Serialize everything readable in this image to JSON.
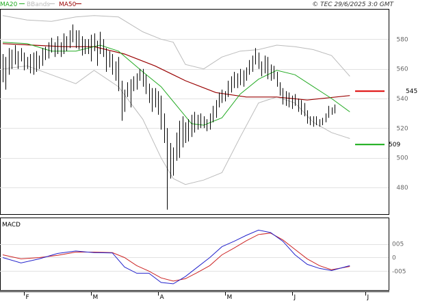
{
  "legend": {
    "ma20_label": "MA20",
    "bbands_label": "BBands",
    "ma50_label": "MA50"
  },
  "copyright": "© TEC 29/6/2025 3:0 GMT",
  "macd_label": "MACD",
  "signals": {
    "upper_value": "545",
    "lower_value": "509"
  },
  "colors": {
    "ma20": "#22aa22",
    "ma50": "#990000",
    "bbands": "#bbbbbb",
    "price": "#000000",
    "macd_line": "#2222cc",
    "macd_signal": "#cc2222",
    "upper_signal": "#dd0000",
    "lower_signal": "#11aa11"
  },
  "chart_data": [
    {
      "type": "line",
      "title": "",
      "ylabel": "",
      "ylim": [
        462,
        600
      ],
      "yticks": [
        480,
        500,
        520,
        540,
        560,
        580
      ],
      "xlabels": [
        "F",
        "M",
        "A",
        "M",
        "J",
        "J"
      ],
      "ohlc": [
        {
          "h": 570,
          "l": 551
        },
        {
          "h": 568,
          "l": 546
        },
        {
          "h": 574,
          "l": 556
        },
        {
          "h": 573,
          "l": 560
        },
        {
          "h": 576,
          "l": 563
        },
        {
          "h": 572,
          "l": 560
        },
        {
          "h": 574,
          "l": 565
        },
        {
          "h": 571,
          "l": 559
        },
        {
          "h": 568,
          "l": 560
        },
        {
          "h": 570,
          "l": 557
        },
        {
          "h": 571,
          "l": 556
        },
        {
          "h": 572,
          "l": 558
        },
        {
          "h": 569,
          "l": 560
        },
        {
          "h": 574,
          "l": 562
        },
        {
          "h": 575,
          "l": 566
        },
        {
          "h": 578,
          "l": 567
        },
        {
          "h": 581,
          "l": 571
        },
        {
          "h": 578,
          "l": 568
        },
        {
          "h": 582,
          "l": 570
        },
        {
          "h": 578,
          "l": 568
        },
        {
          "h": 584,
          "l": 570
        },
        {
          "h": 582,
          "l": 572
        },
        {
          "h": 586,
          "l": 574
        },
        {
          "h": 590,
          "l": 578
        },
        {
          "h": 586,
          "l": 574
        },
        {
          "h": 586,
          "l": 573
        },
        {
          "h": 582,
          "l": 569
        },
        {
          "h": 580,
          "l": 570
        },
        {
          "h": 580,
          "l": 570
        },
        {
          "h": 583,
          "l": 565
        },
        {
          "h": 584,
          "l": 572
        },
        {
          "h": 579,
          "l": 562
        },
        {
          "h": 585,
          "l": 570
        },
        {
          "h": 580,
          "l": 568
        },
        {
          "h": 574,
          "l": 558
        },
        {
          "h": 572,
          "l": 561
        },
        {
          "h": 570,
          "l": 556
        },
        {
          "h": 565,
          "l": 552
        },
        {
          "h": 568,
          "l": 545
        },
        {
          "h": 552,
          "l": 525
        },
        {
          "h": 546,
          "l": 531
        },
        {
          "h": 551,
          "l": 541
        },
        {
          "h": 553,
          "l": 534
        },
        {
          "h": 555,
          "l": 545
        },
        {
          "h": 557,
          "l": 546
        },
        {
          "h": 560,
          "l": 552
        },
        {
          "h": 560,
          "l": 548
        },
        {
          "h": 556,
          "l": 543
        },
        {
          "h": 550,
          "l": 537
        },
        {
          "h": 547,
          "l": 531
        },
        {
          "h": 547,
          "l": 534
        },
        {
          "h": 545,
          "l": 529
        },
        {
          "h": 542,
          "l": 519
        },
        {
          "h": 530,
          "l": 510
        },
        {
          "h": 520,
          "l": 465
        },
        {
          "h": 510,
          "l": 486
        },
        {
          "h": 507,
          "l": 488
        },
        {
          "h": 517,
          "l": 498
        },
        {
          "h": 525,
          "l": 500
        },
        {
          "h": 528,
          "l": 507
        },
        {
          "h": 524,
          "l": 510
        },
        {
          "h": 526,
          "l": 511
        },
        {
          "h": 529,
          "l": 514
        },
        {
          "h": 531,
          "l": 517
        },
        {
          "h": 529,
          "l": 519
        },
        {
          "h": 530,
          "l": 520
        },
        {
          "h": 528,
          "l": 520
        },
        {
          "h": 526,
          "l": 518
        },
        {
          "h": 530,
          "l": 519
        },
        {
          "h": 535,
          "l": 524
        },
        {
          "h": 539,
          "l": 527
        },
        {
          "h": 544,
          "l": 534
        },
        {
          "h": 546,
          "l": 537
        },
        {
          "h": 545,
          "l": 538
        },
        {
          "h": 552,
          "l": 541
        },
        {
          "h": 555,
          "l": 544
        },
        {
          "h": 558,
          "l": 547
        },
        {
          "h": 557,
          "l": 547
        },
        {
          "h": 560,
          "l": 549
        },
        {
          "h": 559,
          "l": 548
        },
        {
          "h": 561,
          "l": 552
        },
        {
          "h": 566,
          "l": 556
        },
        {
          "h": 569,
          "l": 558
        },
        {
          "h": 574,
          "l": 563
        },
        {
          "h": 571,
          "l": 560
        },
        {
          "h": 565,
          "l": 555
        },
        {
          "h": 569,
          "l": 557
        },
        {
          "h": 568,
          "l": 553
        },
        {
          "h": 563,
          "l": 552
        },
        {
          "h": 562,
          "l": 553
        },
        {
          "h": 558,
          "l": 548
        },
        {
          "h": 551,
          "l": 542
        },
        {
          "h": 547,
          "l": 536
        },
        {
          "h": 545,
          "l": 535
        },
        {
          "h": 544,
          "l": 534
        },
        {
          "h": 542,
          "l": 533
        },
        {
          "h": 543,
          "l": 535
        },
        {
          "h": 540,
          "l": 531
        },
        {
          "h": 539,
          "l": 529
        },
        {
          "h": 537,
          "l": 528
        },
        {
          "h": 532,
          "l": 523
        },
        {
          "h": 528,
          "l": 522
        },
        {
          "h": 528,
          "l": 521
        },
        {
          "h": 528,
          "l": 522
        },
        {
          "h": 526,
          "l": 521
        },
        {
          "h": 527,
          "l": 522
        },
        {
          "h": 530,
          "l": 524
        },
        {
          "h": 535,
          "l": 527
        },
        {
          "h": 534,
          "l": 529
        },
        {
          "h": 536,
          "l": 530
        }
      ],
      "ma20_x_index": [
        0,
        8,
        16,
        24,
        32,
        38,
        46,
        52,
        58,
        62,
        66,
        72,
        78,
        84,
        90,
        96,
        102,
        108,
        114
      ],
      "ma20": [
        578,
        577,
        572,
        572,
        576,
        572,
        558,
        548,
        533,
        523,
        522,
        527,
        543,
        553,
        559,
        556,
        548,
        540,
        531
      ],
      "ma50_x_index": [
        0,
        10,
        20,
        30,
        40,
        50,
        60,
        70,
        80,
        90,
        100,
        114
      ],
      "ma50": [
        577,
        576,
        575,
        575,
        570,
        562,
        552,
        544,
        541,
        541,
        539,
        542
      ],
      "bb_x_index": [
        0,
        8,
        16,
        24,
        30,
        38,
        46,
        52,
        56,
        60,
        66,
        72,
        78,
        84,
        90,
        96,
        102,
        108,
        114
      ],
      "bb_upper": [
        596,
        593,
        592,
        595,
        596,
        595,
        585,
        580,
        578,
        563,
        560,
        568,
        572,
        573,
        576,
        575,
        573,
        569,
        555
      ],
      "bb_lower": [
        560,
        562,
        556,
        550,
        559,
        548,
        526,
        500,
        486,
        482,
        485,
        490,
        514,
        537,
        541,
        537,
        524,
        517,
        513
      ],
      "signal_upper": 545,
      "signal_lower": 509
    },
    {
      "type": "line",
      "title": "",
      "ylim": [
        -0.012,
        0.0145
      ],
      "ytick_labels": [
        "005",
        "0",
        "-005"
      ],
      "yticks": [
        0.005,
        0.0,
        -0.005
      ],
      "x_index": [
        0,
        6,
        12,
        18,
        24,
        30,
        36,
        40,
        44,
        48,
        52,
        56,
        60,
        64,
        68,
        72,
        76,
        80,
        84,
        88,
        92,
        96,
        100,
        104,
        108,
        114
      ],
      "macd": [
        0.0,
        -0.002,
        -0.0005,
        0.0015,
        0.0024,
        0.0018,
        0.0017,
        -0.0035,
        -0.0058,
        -0.0058,
        -0.0092,
        -0.0097,
        -0.007,
        -0.0035,
        0.0,
        0.004,
        0.006,
        0.0082,
        0.0101,
        0.0092,
        0.006,
        0.001,
        -0.0025,
        -0.004,
        -0.0048,
        -0.003
      ],
      "signal": [
        0.001,
        -0.0005,
        0.0,
        0.0008,
        0.002,
        0.002,
        0.0018,
        0.0,
        -0.003,
        -0.005,
        -0.0075,
        -0.0087,
        -0.0078,
        -0.0055,
        -0.003,
        0.001,
        0.0035,
        0.0062,
        0.0085,
        0.009,
        0.0065,
        0.003,
        -0.0005,
        -0.003,
        -0.0045,
        -0.0033
      ]
    }
  ]
}
